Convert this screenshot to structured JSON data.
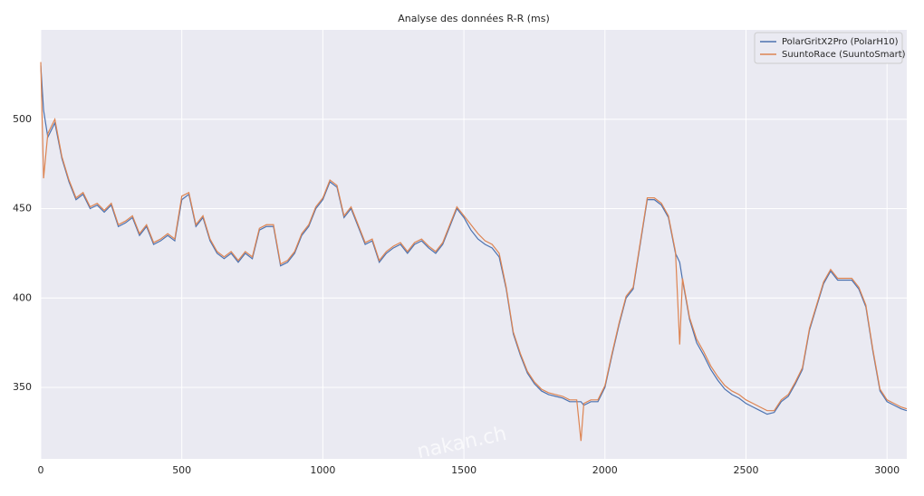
{
  "chart_data": {
    "type": "line",
    "title": "Analyse des données R-R (ms)",
    "watermark": "nakan.ch",
    "x": [
      0,
      10,
      25,
      50,
      75,
      100,
      125,
      150,
      175,
      200,
      225,
      250,
      275,
      300,
      325,
      350,
      375,
      400,
      425,
      450,
      475,
      500,
      525,
      550,
      575,
      600,
      625,
      650,
      675,
      700,
      725,
      750,
      775,
      800,
      825,
      850,
      875,
      900,
      925,
      950,
      975,
      1000,
      1025,
      1050,
      1075,
      1100,
      1125,
      1150,
      1175,
      1200,
      1225,
      1250,
      1275,
      1300,
      1325,
      1350,
      1375,
      1400,
      1425,
      1450,
      1475,
      1500,
      1525,
      1550,
      1575,
      1600,
      1625,
      1650,
      1675,
      1700,
      1725,
      1750,
      1775,
      1800,
      1825,
      1850,
      1875,
      1900,
      1915,
      1925,
      1950,
      1975,
      2000,
      2025,
      2050,
      2075,
      2100,
      2125,
      2150,
      2175,
      2200,
      2225,
      2250,
      2265,
      2275,
      2300,
      2325,
      2350,
      2375,
      2400,
      2425,
      2450,
      2475,
      2500,
      2525,
      2550,
      2575,
      2600,
      2625,
      2650,
      2675,
      2700,
      2725,
      2750,
      2775,
      2800,
      2825,
      2850,
      2875,
      2900,
      2925,
      2950,
      2975,
      3000,
      3025,
      3050,
      3070
    ],
    "series": [
      {
        "name": "PolarGritX2Pro (PolarH10)",
        "color": "#4c72b0",
        "values": [
          530,
          505,
          490,
          498,
          478,
          465,
          455,
          458,
          450,
          452,
          448,
          452,
          440,
          442,
          445,
          435,
          440,
          430,
          432,
          435,
          432,
          455,
          458,
          440,
          445,
          432,
          425,
          422,
          425,
          420,
          425,
          422,
          438,
          440,
          440,
          418,
          420,
          425,
          435,
          440,
          450,
          455,
          465,
          462,
          445,
          450,
          440,
          430,
          432,
          420,
          425,
          428,
          430,
          425,
          430,
          432,
          428,
          425,
          430,
          440,
          450,
          445,
          438,
          433,
          430,
          428,
          423,
          405,
          380,
          368,
          358,
          352,
          348,
          346,
          345,
          344,
          342,
          342,
          342,
          340,
          342,
          342,
          350,
          368,
          385,
          400,
          405,
          430,
          455,
          455,
          452,
          445,
          425,
          420,
          410,
          388,
          375,
          368,
          360,
          354,
          349,
          346,
          344,
          341,
          339,
          337,
          335,
          336,
          342,
          345,
          352,
          360,
          382,
          395,
          408,
          415,
          410,
          410,
          410,
          405,
          395,
          370,
          348,
          342,
          340,
          338,
          337
        ]
      },
      {
        "name": "SuuntoRace (SuuntoSmart)",
        "color": "#dd8452",
        "values": [
          532,
          467,
          492,
          500,
          479,
          466,
          456,
          459,
          451,
          453,
          449,
          453,
          441,
          443,
          446,
          436,
          441,
          431,
          433,
          436,
          433,
          457,
          459,
          441,
          446,
          433,
          426,
          423,
          426,
          421,
          426,
          423,
          439,
          441,
          441,
          419,
          421,
          426,
          436,
          441,
          451,
          456,
          466,
          463,
          446,
          451,
          441,
          431,
          433,
          421,
          426,
          429,
          431,
          426,
          431,
          433,
          429,
          426,
          431,
          441,
          451,
          446,
          441,
          436,
          432,
          430,
          425,
          406,
          381,
          369,
          359,
          353,
          349,
          347,
          346,
          345,
          343,
          343,
          320,
          341,
          343,
          343,
          351,
          369,
          386,
          401,
          406,
          431,
          456,
          456,
          453,
          446,
          426,
          374,
          411,
          389,
          377,
          370,
          362,
          356,
          351,
          348,
          346,
          343,
          341,
          339,
          337,
          337,
          343,
          346,
          353,
          361,
          383,
          396,
          409,
          416,
          411,
          411,
          411,
          406,
          396,
          371,
          349,
          343,
          341,
          339,
          338
        ]
      }
    ],
    "xlim": [
      0,
      3070
    ],
    "ylim": [
      310,
      550
    ],
    "xticks": [
      0,
      500,
      1000,
      1500,
      2000,
      2500,
      3000
    ],
    "yticks": [
      350,
      400,
      450,
      500
    ],
    "grid": true,
    "legend": "upper right"
  }
}
